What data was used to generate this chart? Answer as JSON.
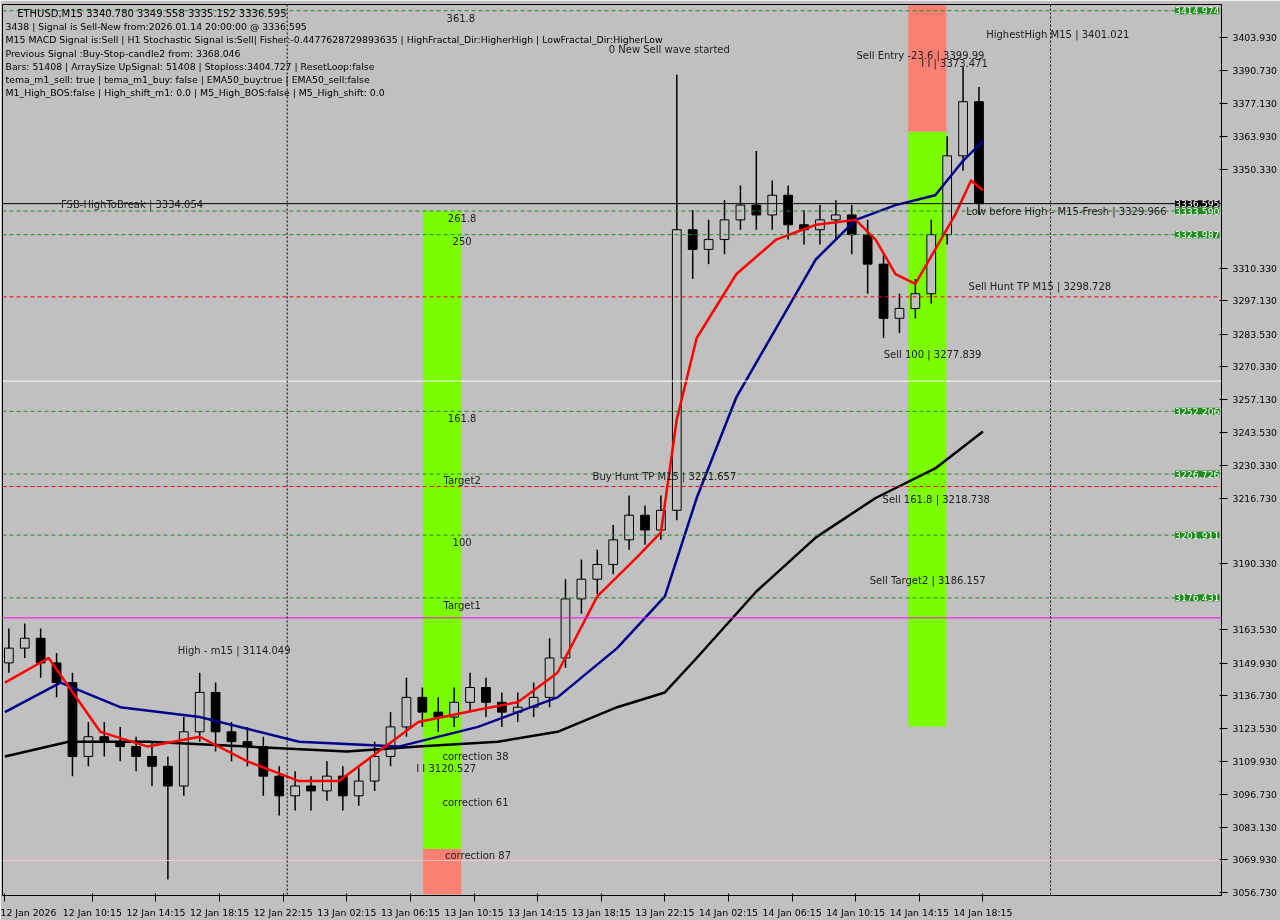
{
  "chart_data": {
    "type": "candlestick",
    "title": "ETHUSD,M15  3340.780 3349.558 3335.152 3336.595",
    "xlim": [
      "2026-01-12T04:36",
      "2026-01-15T09:15"
    ],
    "ylim": [
      3055.5,
      3417.5
    ],
    "xticks": [
      {
        "value": "2026-01-12T04:45",
        "label": "12 Jan 2026"
      },
      {
        "value": "2026-01-12T10:15",
        "label": "12 Jan 10:15"
      },
      {
        "value": "2026-01-12T14:15",
        "label": "12 Jan 14:15"
      },
      {
        "value": "2026-01-12T18:15",
        "label": "12 Jan 18:15"
      },
      {
        "value": "2026-01-12T22:15",
        "label": "12 Jan 22:15"
      },
      {
        "value": "2026-01-13T02:15",
        "label": "13 Jan 02:15"
      },
      {
        "value": "2026-01-13T06:15",
        "label": "13 Jan 06:15"
      },
      {
        "value": "2026-01-13T10:15",
        "label": "13 Jan 10:15"
      },
      {
        "value": "2026-01-13T14:15",
        "label": "13 Jan 14:15"
      },
      {
        "value": "2026-01-13T18:15",
        "label": "13 Jan 18:15"
      },
      {
        "value": "2026-01-13T22:15",
        "label": "13 Jan 22:15"
      },
      {
        "value": "2026-01-14T02:15",
        "label": "14 Jan 02:15"
      },
      {
        "value": "2026-01-14T06:15",
        "label": "14 Jan 06:15"
      },
      {
        "value": "2026-01-14T10:15",
        "label": "14 Jan 10:15"
      },
      {
        "value": "2026-01-14T14:15",
        "label": "14 Jan 14:15"
      },
      {
        "value": "2026-01-14T18:15",
        "label": "14 Jan 18:15"
      }
    ],
    "yticks": [
      {
        "value": 3056.73,
        "label": "3056.730"
      },
      {
        "value": 3069.93,
        "label": "3069.930"
      },
      {
        "value": 3083.13,
        "label": "3083.130"
      },
      {
        "value": 3096.73,
        "label": "3096.730"
      },
      {
        "value": 3109.93,
        "label": "3109.930"
      },
      {
        "value": 3123.53,
        "label": "3123.530"
      },
      {
        "value": 3136.73,
        "label": "3136.730"
      },
      {
        "value": 3149.93,
        "label": "3149.930"
      },
      {
        "value": 3163.53,
        "label": "3163.530"
      },
      {
        "value": 3190.33,
        "label": "3190.330"
      },
      {
        "value": 3216.73,
        "label": "3216.730"
      },
      {
        "value": 3230.33,
        "label": "3230.330"
      },
      {
        "value": 3243.53,
        "label": "3243.530"
      },
      {
        "value": 3257.13,
        "label": "3257.130"
      },
      {
        "value": 3270.33,
        "label": "3270.330"
      },
      {
        "value": 3283.53,
        "label": "3283.530"
      },
      {
        "value": 3297.13,
        "label": "3297.130"
      },
      {
        "value": 3310.33,
        "label": "3310.330"
      },
      {
        "value": 3350.33,
        "label": "3350.330"
      },
      {
        "value": 3363.93,
        "label": "3363.930"
      },
      {
        "value": 3377.13,
        "label": "3377.130"
      },
      {
        "value": 3390.73,
        "label": "3390.730"
      },
      {
        "value": 3403.93,
        "label": "3403.930"
      }
    ],
    "series": [
      {
        "type": "bar",
        "x": [
          "2026-01-13T08:15",
          "2026-01-14T14:45"
        ],
        "base": [
          3056.0,
          3124.2
        ],
        "values": [
          18.5,
          94.5
        ],
        "colors": [
          "#fa8072",
          "#7cfc00"
        ]
      },
      {
        "type": "bar",
        "x": [
          "2026-01-13T08:15",
          "2026-01-14T14:45"
        ],
        "base": [
          3074.5,
          3218.7
        ],
        "values": [
          177.7,
          59.1
        ],
        "colors": [
          "#7cfc00",
          "#7cfc00"
        ]
      },
      {
        "type": "bar",
        "x": [
          "2026-01-13T08:15",
          "2026-01-14T14:45"
        ],
        "base": [
          3252.2,
          3277.8
        ],
        "values": [
          81.4,
          88.1
        ],
        "colors": [
          "#7cfc00",
          "#7cfc00"
        ]
      },
      {
        "type": "bar",
        "x": [
          "2026-01-14T14:45"
        ],
        "base": [
          3365.9
        ],
        "values": [
          51.4
        ],
        "colors": [
          "#fa8072"
        ]
      },
      {
        "type": "line",
        "color": "#000000",
        "x": [
          "2026-01-12T04:45",
          "2026-01-12T08:45",
          "2026-01-12T13:45",
          "2026-01-12T20:00",
          "2026-01-13T02:15",
          "2026-01-13T06:45",
          "2026-01-13T11:45",
          "2026-01-13T15:30",
          "2026-01-13T19:15",
          "2026-01-13T22:15",
          "2026-01-14T00:15",
          "2026-01-14T04:00",
          "2026-01-14T07:45",
          "2026-01-14T11:30",
          "2026-01-14T15:15",
          "2026-01-14T18:15"
        ],
        "values": [
          3112,
          3118,
          3118,
          3116,
          3114,
          3116,
          3118,
          3122,
          3132,
          3138,
          3152,
          3179,
          3201,
          3217,
          3229,
          3244
        ]
      },
      {
        "type": "line",
        "color": "#00008b",
        "x": [
          "2026-01-12T04:45",
          "2026-01-12T08:15",
          "2026-01-12T12:00",
          "2026-01-12T17:00",
          "2026-01-12T23:15",
          "2026-01-13T05:30",
          "2026-01-13T10:30",
          "2026-01-13T15:30",
          "2026-01-13T19:15",
          "2026-01-13T22:15",
          "2026-01-14T00:15",
          "2026-01-14T02:45",
          "2026-01-14T05:15",
          "2026-01-14T07:45",
          "2026-01-14T10:15",
          "2026-01-14T12:45",
          "2026-01-14T15:15",
          "2026-01-14T17:00",
          "2026-01-14T18:15"
        ],
        "values": [
          3130,
          3142,
          3132,
          3128,
          3118,
          3116,
          3124,
          3136,
          3156,
          3177,
          3217,
          3258,
          3286,
          3314,
          3330,
          3336,
          3340,
          3354,
          3362
        ]
      },
      {
        "type": "line",
        "color": "#ff0000",
        "x": [
          "2026-01-12T04:45",
          "2026-01-12T07:30",
          "2026-01-12T10:45",
          "2026-01-12T13:45",
          "2026-01-12T17:00",
          "2026-01-12T20:00",
          "2026-01-12T23:15",
          "2026-01-13T01:45",
          "2026-01-13T04:15",
          "2026-01-13T06:45",
          "2026-01-13T10:30",
          "2026-01-13T13:00",
          "2026-01-13T15:30",
          "2026-01-13T18:00",
          "2026-01-13T20:30",
          "2026-01-13T22:00",
          "2026-01-13T23:00",
          "2026-01-14T00:15",
          "2026-01-14T02:45",
          "2026-01-14T05:15",
          "2026-01-14T07:45",
          "2026-01-14T10:15",
          "2026-01-14T11:30",
          "2026-01-14T12:45",
          "2026-01-14T14:00",
          "2026-01-14T15:15",
          "2026-01-14T16:30",
          "2026-01-14T17:30",
          "2026-01-14T18:15"
        ],
        "values": [
          3142,
          3152,
          3122,
          3116,
          3120,
          3110,
          3102,
          3102,
          3114,
          3126,
          3131,
          3134,
          3146,
          3177,
          3193,
          3203,
          3249,
          3282,
          3308,
          3322,
          3328,
          3330,
          3322,
          3308,
          3304,
          3318,
          3332,
          3346,
          3342
        ]
      },
      {
        "color": "#000000",
        "x": [
          "2026-01-12T05:00",
          "2026-01-12T06:00",
          "2026-01-12T07:00",
          "2026-01-12T08:00",
          "2026-01-12T09:00",
          "2026-01-12T10:00",
          "2026-01-12T11:00",
          "2026-01-12T12:00",
          "2026-01-12T13:00",
          "2026-01-12T14:00",
          "2026-01-12T15:00",
          "2026-01-12T16:00",
          "2026-01-12T17:00",
          "2026-01-12T18:00",
          "2026-01-12T19:00",
          "2026-01-12T20:00",
          "2026-01-12T21:00",
          "2026-01-12T22:00",
          "2026-01-12T23:00",
          "2026-01-13T00:00",
          "2026-01-13T01:00",
          "2026-01-13T02:00",
          "2026-01-13T03:00",
          "2026-01-13T04:00",
          "2026-01-13T05:00",
          "2026-01-13T06:00",
          "2026-01-13T07:00",
          "2026-01-13T08:00",
          "2026-01-13T09:00",
          "2026-01-13T10:00",
          "2026-01-13T11:00",
          "2026-01-13T12:00",
          "2026-01-13T13:00",
          "2026-01-13T14:00",
          "2026-01-13T15:00",
          "2026-01-13T16:00",
          "2026-01-13T17:00",
          "2026-01-13T18:00",
          "2026-01-13T19:00",
          "2026-01-13T20:00",
          "2026-01-13T21:00",
          "2026-01-13T22:00",
          "2026-01-13T23:00",
          "2026-01-14T00:00",
          "2026-01-14T01:00",
          "2026-01-14T02:00",
          "2026-01-14T03:00",
          "2026-01-14T04:00",
          "2026-01-14T05:00",
          "2026-01-14T06:00",
          "2026-01-14T07:00",
          "2026-01-14T08:00",
          "2026-01-14T09:00",
          "2026-01-14T10:00",
          "2026-01-14T11:00",
          "2026-01-14T12:00",
          "2026-01-14T13:00",
          "2026-01-14T14:00",
          "2026-01-14T15:00",
          "2026-01-14T16:00",
          "2026-01-14T17:00",
          "2026-01-14T18:00"
        ],
        "ohlc": [
          [
            3150,
            3164,
            3146,
            3156
          ],
          [
            3156,
            3166,
            3152,
            3160
          ],
          [
            3160,
            3164,
            3144,
            3150
          ],
          [
            3150,
            3154,
            3136,
            3142
          ],
          [
            3142,
            3146,
            3104,
            3112
          ],
          [
            3112,
            3126,
            3108,
            3120
          ],
          [
            3120,
            3126,
            3112,
            3118
          ],
          [
            3118,
            3124,
            3110,
            3116
          ],
          [
            3116,
            3120,
            3106,
            3112
          ],
          [
            3112,
            3118,
            3100,
            3108
          ],
          [
            3108,
            3112,
            3062,
            3100
          ],
          [
            3100,
            3128,
            3096,
            3122
          ],
          [
            3122,
            3146,
            3118,
            3138
          ],
          [
            3138,
            3142,
            3114,
            3122
          ],
          [
            3122,
            3126,
            3110,
            3118
          ],
          [
            3118,
            3124,
            3108,
            3116
          ],
          [
            3116,
            3120,
            3096,
            3104
          ],
          [
            3104,
            3108,
            3088,
            3096
          ],
          [
            3096,
            3106,
            3090,
            3100
          ],
          [
            3100,
            3104,
            3090,
            3098
          ],
          [
            3098,
            3110,
            3094,
            3104
          ],
          [
            3104,
            3108,
            3090,
            3096
          ],
          [
            3096,
            3108,
            3092,
            3102
          ],
          [
            3102,
            3118,
            3098,
            3112
          ],
          [
            3112,
            3130,
            3108,
            3124
          ],
          [
            3124,
            3144,
            3120,
            3136
          ],
          [
            3136,
            3140,
            3124,
            3130
          ],
          [
            3130,
            3136,
            3122,
            3128
          ],
          [
            3128,
            3140,
            3124,
            3134
          ],
          [
            3134,
            3146,
            3130,
            3140
          ],
          [
            3140,
            3144,
            3128,
            3134
          ],
          [
            3134,
            3138,
            3124,
            3130
          ],
          [
            3130,
            3138,
            3126,
            3132
          ],
          [
            3132,
            3142,
            3128,
            3136
          ],
          [
            3136,
            3160,
            3132,
            3152
          ],
          [
            3152,
            3184,
            3148,
            3176
          ],
          [
            3176,
            3192,
            3170,
            3184
          ],
          [
            3184,
            3196,
            3178,
            3190
          ],
          [
            3190,
            3206,
            3186,
            3200
          ],
          [
            3200,
            3218,
            3196,
            3210
          ],
          [
            3210,
            3214,
            3198,
            3204
          ],
          [
            3204,
            3218,
            3200,
            3212
          ],
          [
            3212,
            3389,
            3208,
            3326
          ],
          [
            3326,
            3334,
            3306,
            3318
          ],
          [
            3318,
            3330,
            3312,
            3322
          ],
          [
            3322,
            3338,
            3316,
            3330
          ],
          [
            3330,
            3344,
            3326,
            3336
          ],
          [
            3336,
            3358,
            3326,
            3332
          ],
          [
            3332,
            3346,
            3326,
            3340
          ],
          [
            3340,
            3344,
            3322,
            3328
          ],
          [
            3328,
            3334,
            3320,
            3326
          ],
          [
            3326,
            3336,
            3320,
            3330
          ],
          [
            3330,
            3338,
            3322,
            3332
          ],
          [
            3332,
            3336,
            3316,
            3324
          ],
          [
            3324,
            3330,
            3300,
            3312
          ],
          [
            3312,
            3316,
            3282,
            3290
          ],
          [
            3290,
            3300,
            3284,
            3294
          ],
          [
            3294,
            3306,
            3290,
            3300
          ],
          [
            3300,
            3330,
            3296,
            3324
          ],
          [
            3324,
            3364,
            3320,
            3356
          ],
          [
            3356,
            3392,
            3350,
            3378
          ],
          [
            3378,
            3384,
            3332,
            3336.595
          ]
        ]
      }
    ],
    "ref_lines": [
      {
        "axis": "y",
        "value": 3414.974,
        "label": "3414.974",
        "color": "#228b22",
        "line_style": "dashed"
      },
      {
        "axis": "y",
        "value": 3336.595,
        "label": "3336.595",
        "color": "#000000",
        "line_style": "solid"
      },
      {
        "axis": "y",
        "value": 3333.59,
        "label": "3333.590",
        "color": "#228b22",
        "line_style": "dashed"
      },
      {
        "axis": "y",
        "value": 3323.987,
        "label": "3323.987",
        "color": "#228b22",
        "line_style": "dashed"
      },
      {
        "axis": "y",
        "value": 3252.206,
        "label": "3252.206",
        "color": "#228b22",
        "line_style": "dashed"
      },
      {
        "axis": "y",
        "value": 3226.726,
        "label": "3226.726",
        "color": "#228b22",
        "line_style": "dashed"
      },
      {
        "axis": "y",
        "value": 3201.911,
        "label": "3201.911",
        "color": "#228b22",
        "line_style": "dashed"
      },
      {
        "axis": "y",
        "value": 3176.431,
        "label": "3176.431",
        "color": "#228b22",
        "line_style": "dashed"
      },
      {
        "axis": "y",
        "value": 3298.728,
        "color": "#ff0000",
        "line_style": "dashed"
      },
      {
        "axis": "y",
        "value": 3221.657,
        "color": "#ff0000",
        "line_style": "dashed"
      },
      {
        "axis": "y",
        "value": 3168.3,
        "color": "#ff00ff",
        "line_style": "solid"
      },
      {
        "axis": "y",
        "value": 3264.5,
        "color": "#fffff0",
        "line_style": "solid"
      },
      {
        "axis": "y",
        "value": 3069.7,
        "color": "#ffc0cb",
        "line_style": "solid"
      },
      {
        "axis": "x",
        "value": "2026-01-12T22:30",
        "color": "#000000",
        "line_style": "dotted"
      },
      {
        "axis": "x",
        "value": "2026-01-14T22:30",
        "color": "#000000",
        "line_style": "dotted"
      }
    ],
    "annotations": [
      "3438 | Signal is Sell-New from:2026.01.14 20:00:00 @ 3336.595",
      "M15 MACD Signal is:Sell | H1 Stochastic Signal is:Sell| Fisher:-0.4477628729893635 | HighFractal_Dir:HigherHigh | LowFractal_Dir:HigherLow",
      "Previous Signal :Buy-Stop-candle2 from: 3368.046",
      "Bars: 51408 | ArraySize UpSignal: 51408 | Stoploss:3404.727 | ResetLoop:false",
      "tema_m1_sell: true | tema_m1_buy: false | EMA50_buy:true | EMA50_sell:false",
      "M1_High_BOS:false | High_shift_m1: 0.0 | M5_High_BOS:false | M5_High_shift: 0.0",
      "361.8",
      "correction 38",
      "correction 61",
      "0 New Sell wave started",
      "Sell Entry -23.6 | 3399.99",
      "I I | 3373.471",
      "HighestHigh  M15 | 3401.021",
      "Sell Hunt TP M15 | 3298.728",
      "Sell 100 | 3277.839",
      "Sell 161.8 | 3218.738",
      "Sell Target2 | 3186.157",
      "Buy Hunt TP M15 | 3221.657",
      "I I 3120.527",
      "High - m15 | 3114.049",
      {
        "text": "261.8",
        "x": "2026-01-13T09:30",
        "y": 3330.8
      },
      {
        "text": "250",
        "x": "2026-01-13T09:30",
        "y": 3321.5
      },
      {
        "text": "161.8",
        "x": "2026-01-13T09:30",
        "y": 3249.5
      },
      {
        "text": "Target2",
        "x": "2026-01-13T09:30",
        "y": 3224
      },
      {
        "text": "100",
        "x": "2026-01-13T09:30",
        "y": 3199
      },
      {
        "text": "Target1",
        "x": "2026-01-13T09:30",
        "y": 3173.5
      },
      {
        "text": "correction 87",
        "x": "2026-01-13T10:30",
        "y": 3071.7
      },
      {
        "text": "Low before High - M15-Fresh | 3329.966",
        "x": "2026-01-14T23:30",
        "y": 3333.6
      },
      {
        "text": "FSB-HighToBreak | 3334.054",
        "x": "2026-01-12T12:45",
        "y": 3336.4
      }
    ]
  }
}
